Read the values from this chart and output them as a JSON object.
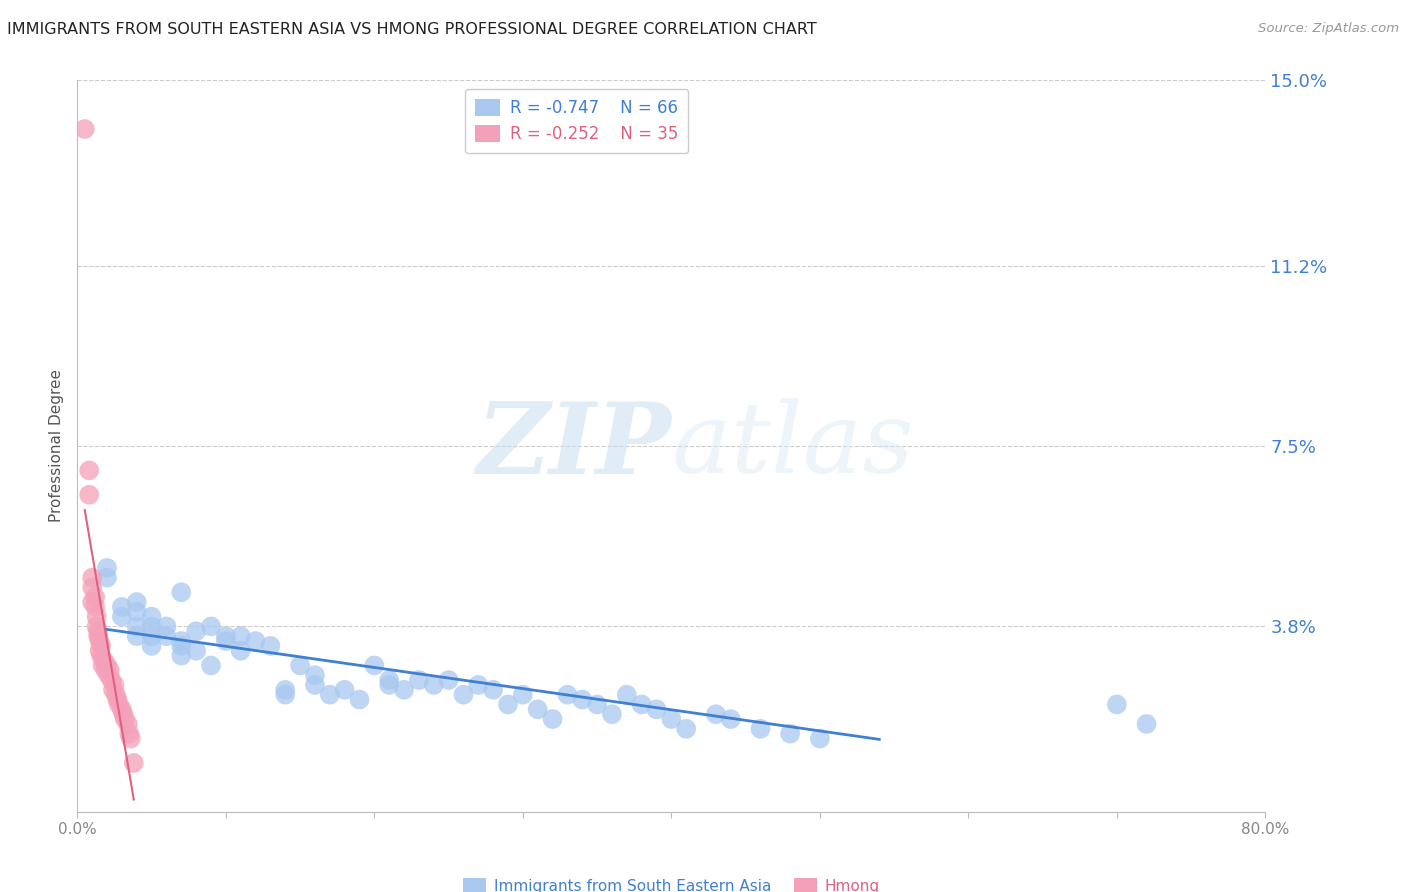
{
  "title": "IMMIGRANTS FROM SOUTH EASTERN ASIA VS HMONG PROFESSIONAL DEGREE CORRELATION CHART",
  "source": "Source: ZipAtlas.com",
  "xlabel": "",
  "ylabel": "Professional Degree",
  "watermark_zip": "ZIP",
  "watermark_atlas": "atlas",
  "xlim": [
    0.0,
    0.8
  ],
  "ylim": [
    0.0,
    0.15
  ],
  "yticks": [
    0.0,
    0.038,
    0.075,
    0.112,
    0.15
  ],
  "ytick_labels": [
    "",
    "3.8%",
    "7.5%",
    "11.2%",
    "15.0%"
  ],
  "xticks": [
    0.0,
    0.1,
    0.2,
    0.3,
    0.4,
    0.5,
    0.6,
    0.7,
    0.8
  ],
  "xtick_labels": [
    "0.0%",
    "",
    "",
    "",
    "",
    "",
    "",
    "",
    "80.0%"
  ],
  "background_color": "#ffffff",
  "grid_color": "#cccccc",
  "blue_color": "#a8c8f0",
  "pink_color": "#f4a0b8",
  "blue_line_color": "#4080d0",
  "pink_line_color": "#e06080",
  "blue_R": "R = -0.747",
  "blue_N": "N = 66",
  "pink_R": "R = -0.252",
  "pink_N": "N = 35",
  "legend_label_blue": "Immigrants from South Eastern Asia",
  "legend_label_pink": "Hmong",
  "blue_scatter_x": [
    0.02,
    0.02,
    0.03,
    0.03,
    0.04,
    0.04,
    0.04,
    0.04,
    0.05,
    0.05,
    0.05,
    0.05,
    0.06,
    0.06,
    0.07,
    0.07,
    0.07,
    0.07,
    0.08,
    0.08,
    0.09,
    0.09,
    0.1,
    0.1,
    0.11,
    0.11,
    0.12,
    0.13,
    0.14,
    0.14,
    0.15,
    0.16,
    0.16,
    0.17,
    0.18,
    0.19,
    0.2,
    0.21,
    0.21,
    0.22,
    0.23,
    0.24,
    0.25,
    0.26,
    0.27,
    0.28,
    0.29,
    0.3,
    0.31,
    0.32,
    0.33,
    0.34,
    0.35,
    0.36,
    0.37,
    0.38,
    0.39,
    0.4,
    0.41,
    0.43,
    0.44,
    0.46,
    0.48,
    0.5,
    0.7,
    0.72
  ],
  "blue_scatter_y": [
    0.05,
    0.048,
    0.042,
    0.04,
    0.043,
    0.041,
    0.038,
    0.036,
    0.04,
    0.038,
    0.036,
    0.034,
    0.038,
    0.036,
    0.045,
    0.035,
    0.034,
    0.032,
    0.037,
    0.033,
    0.038,
    0.03,
    0.036,
    0.035,
    0.036,
    0.033,
    0.035,
    0.034,
    0.025,
    0.024,
    0.03,
    0.028,
    0.026,
    0.024,
    0.025,
    0.023,
    0.03,
    0.027,
    0.026,
    0.025,
    0.027,
    0.026,
    0.027,
    0.024,
    0.026,
    0.025,
    0.022,
    0.024,
    0.021,
    0.019,
    0.024,
    0.023,
    0.022,
    0.02,
    0.024,
    0.022,
    0.021,
    0.019,
    0.017,
    0.02,
    0.019,
    0.017,
    0.016,
    0.015,
    0.022,
    0.018
  ],
  "pink_scatter_x": [
    0.005,
    0.008,
    0.008,
    0.01,
    0.01,
    0.01,
    0.012,
    0.012,
    0.013,
    0.013,
    0.014,
    0.014,
    0.015,
    0.015,
    0.016,
    0.016,
    0.017,
    0.018,
    0.019,
    0.02,
    0.021,
    0.022,
    0.023,
    0.024,
    0.025,
    0.026,
    0.027,
    0.028,
    0.03,
    0.031,
    0.032,
    0.034,
    0.035,
    0.036,
    0.038
  ],
  "pink_scatter_y": [
    0.14,
    0.07,
    0.065,
    0.048,
    0.046,
    0.043,
    0.044,
    0.042,
    0.04,
    0.038,
    0.037,
    0.036,
    0.035,
    0.033,
    0.034,
    0.032,
    0.03,
    0.031,
    0.029,
    0.03,
    0.028,
    0.029,
    0.027,
    0.025,
    0.026,
    0.024,
    0.023,
    0.022,
    0.021,
    0.02,
    0.019,
    0.018,
    0.016,
    0.015,
    0.01
  ]
}
